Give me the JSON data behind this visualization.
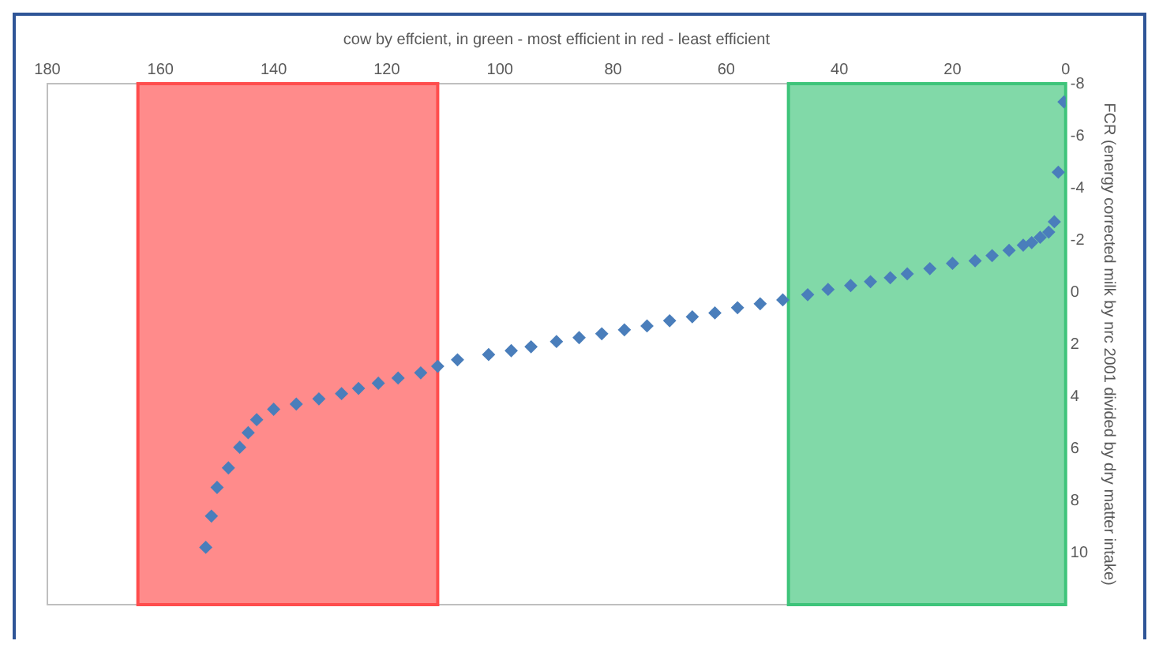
{
  "chart_data": {
    "type": "scatter",
    "xlabel": "cow by effcient, in green - most efficient in red - least efficient",
    "ylabel": "FCR (energy corrected milk by nrc 2001 divided by dry matter intake)",
    "x": [
      0.3,
      1.3,
      2,
      3,
      4.5,
      6,
      7.5,
      10,
      13,
      16,
      20,
      24,
      28,
      31,
      34.5,
      38,
      42,
      45.6,
      50,
      54,
      58,
      62,
      66,
      70,
      74,
      78,
      82,
      86,
      90,
      94.5,
      98,
      102,
      107.5,
      111,
      114,
      118,
      121.5,
      125,
      128,
      132,
      136,
      140,
      143,
      144.5,
      146,
      148,
      150,
      151,
      152
    ],
    "series": [
      {
        "color": "#4a7ebb",
        "values": [
          -7.3,
          -4.6,
          -2.7,
          -2.3,
          -2.1,
          -1.9,
          -1.8,
          -1.6,
          -1.4,
          -1.2,
          -1.1,
          -0.9,
          -0.7,
          -0.55,
          -0.4,
          -0.25,
          -0.1,
          0.1,
          0.3,
          0.45,
          0.6,
          0.8,
          0.95,
          1.1,
          1.3,
          1.45,
          1.6,
          1.75,
          1.9,
          2.1,
          2.25,
          2.4,
          2.6,
          2.85,
          3.1,
          3.3,
          3.5,
          3.7,
          3.9,
          4.1,
          4.3,
          4.5,
          4.9,
          5.4,
          5.96,
          6.75,
          7.5,
          8.6,
          9.8
        ]
      }
    ],
    "xlim": [
      180,
      0
    ],
    "xticks": [
      0,
      20,
      40,
      60,
      80,
      100,
      120,
      140,
      160,
      180
    ],
    "ylim": [
      12,
      -8
    ],
    "yticks": [
      -8,
      -6,
      -4,
      -2,
      0,
      2,
      4,
      6,
      8,
      10
    ],
    "bands": [
      {
        "axis": "x",
        "from": 0,
        "to": 49,
        "label": null,
        "color": "#3ec47a"
      },
      {
        "axis": "x",
        "from": 111,
        "to": 164,
        "label": null,
        "color": "#ff4d4d"
      }
    ],
    "grid": false,
    "legend": false,
    "marker": "diamond"
  }
}
